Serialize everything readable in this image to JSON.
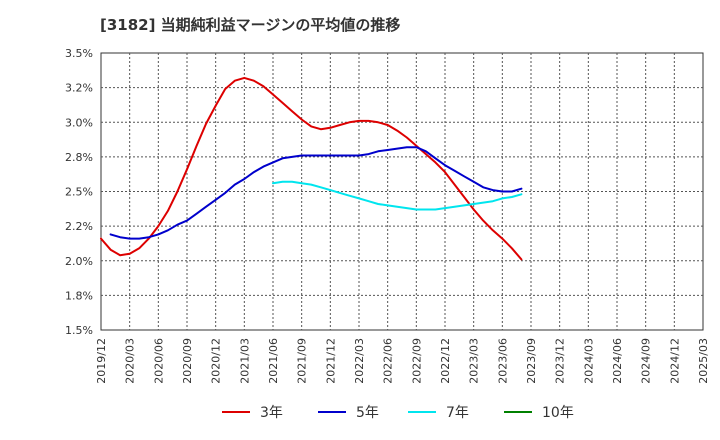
{
  "chart_data": {
    "type": "line",
    "title": "[3182]  当期純利益マージンの平均値の推移",
    "xlabel": "",
    "ylabel": "",
    "ylim": [
      1.5,
      3.5
    ],
    "grid": true,
    "legend_position": "bottom",
    "x_ticks": [
      "2019/12",
      "2020/03",
      "2020/06",
      "2020/09",
      "2020/12",
      "2021/03",
      "2021/06",
      "2021/09",
      "2021/12",
      "2022/03",
      "2022/06",
      "2022/09",
      "2022/12",
      "2023/03",
      "2023/06",
      "2023/09",
      "2023/12",
      "2024/03",
      "2024/06",
      "2024/09",
      "2024/12",
      "2025/03"
    ],
    "y_ticks": [
      "1.5%",
      "1.8%",
      "2.0%",
      "2.2%",
      "2.5%",
      "2.8%",
      "3.0%",
      "3.2%",
      "3.5%"
    ],
    "series": [
      {
        "name": "3年",
        "color": "#dd0000",
        "values": [
          2.16,
          2.08,
          2.04,
          2.05,
          2.09,
          2.16,
          2.25,
          2.36,
          2.5,
          2.66,
          2.83,
          2.99,
          3.12,
          3.24,
          3.3,
          3.32,
          3.3,
          3.26,
          3.2,
          3.14,
          3.08,
          3.02,
          2.97,
          2.95,
          2.96,
          2.98,
          3.0,
          3.01,
          3.01,
          3.0,
          2.98,
          2.94,
          2.89,
          2.83,
          2.77,
          2.71,
          2.64,
          2.55,
          2.46,
          2.37,
          2.29,
          2.22,
          2.16,
          2.09,
          2.01
        ]
      },
      {
        "name": "5年",
        "color": "#0000cc",
        "values": [
          null,
          2.19,
          2.17,
          2.16,
          2.16,
          2.17,
          2.19,
          2.22,
          2.26,
          2.29,
          2.34,
          2.39,
          2.44,
          2.49,
          2.55,
          2.59,
          2.64,
          2.68,
          2.71,
          2.74,
          2.75,
          2.76,
          2.76,
          2.76,
          2.76,
          2.76,
          2.76,
          2.76,
          2.77,
          2.79,
          2.8,
          2.81,
          2.82,
          2.82,
          2.79,
          2.74,
          2.69,
          2.65,
          2.61,
          2.57,
          2.53,
          2.51,
          2.5,
          2.5,
          2.52
        ]
      },
      {
        "name": "7年",
        "color": "#00e5ee",
        "values": [
          null,
          null,
          null,
          null,
          null,
          null,
          null,
          null,
          null,
          null,
          null,
          null,
          null,
          null,
          null,
          null,
          null,
          null,
          2.56,
          2.57,
          2.57,
          2.56,
          2.55,
          2.53,
          2.51,
          2.49,
          2.47,
          2.45,
          2.43,
          2.41,
          2.4,
          2.39,
          2.38,
          2.37,
          2.37,
          2.37,
          2.38,
          2.39,
          2.4,
          2.41,
          2.42,
          2.43,
          2.45,
          2.46,
          2.48
        ]
      },
      {
        "name": "10年",
        "color": "#008000",
        "values": []
      }
    ]
  }
}
